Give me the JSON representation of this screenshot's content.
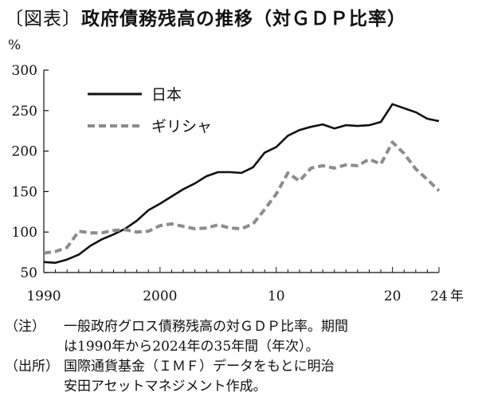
{
  "title": {
    "tag": "〔図表〕",
    "text": "政府債務残高の推移（対ＧＤＰ比率）"
  },
  "notes": {
    "note_label": "（注）",
    "note_line1": "一般政府グロス債務残高の対ＧＤＰ比率。期間",
    "note_line2": "は1990年から2024年の35年間（年次）。",
    "source_label": "（出所）",
    "source_line1": "国際通貨基金（ＩＭＦ）データをもとに明治",
    "source_line2": "安田アセットマネジメント作成。"
  },
  "chart_data": {
    "type": "line",
    "title": "政府債務残高の推移（対ＧＤＰ比率）",
    "ylabel": "%",
    "xlabel": "",
    "y_unit_label": "%",
    "x_unit_label": "年",
    "ylim": [
      50,
      300
    ],
    "xlim": [
      1990,
      2024
    ],
    "y_ticks": [
      50,
      100,
      150,
      200,
      250,
      300
    ],
    "x_ticks": [
      {
        "value": 1990,
        "label": "1990"
      },
      {
        "value": 2000,
        "label": "2000"
      },
      {
        "value": 2010,
        "label": "10"
      },
      {
        "value": 2020,
        "label": "20"
      },
      {
        "value": 2024,
        "label": "24"
      }
    ],
    "grid": false,
    "legend_position": "top-left",
    "x": [
      1990,
      1991,
      1992,
      1993,
      1994,
      1995,
      1996,
      1997,
      1998,
      1999,
      2000,
      2001,
      2002,
      2003,
      2004,
      2005,
      2006,
      2007,
      2008,
      2009,
      2010,
      2011,
      2012,
      2013,
      2014,
      2015,
      2016,
      2017,
      2018,
      2019,
      2020,
      2021,
      2022,
      2023,
      2024
    ],
    "series": [
      {
        "name": "日本",
        "style": "solid",
        "color": "#111111",
        "values": [
          63,
          62,
          66,
          72,
          83,
          91,
          97,
          104,
          114,
          127,
          135,
          144,
          153,
          160,
          169,
          174,
          174,
          173,
          180,
          198,
          205,
          219,
          226,
          230,
          233,
          228,
          232,
          231,
          232,
          236,
          258,
          253,
          248,
          240,
          237
        ]
      },
      {
        "name": "ギリシャ",
        "style": "dashed",
        "color": "#8c8c8c",
        "values": [
          74,
          76,
          81,
          101,
          99,
          99,
          102,
          103,
          100,
          101,
          108,
          110,
          107,
          104,
          105,
          109,
          105,
          104,
          110,
          128,
          147,
          173,
          163,
          179,
          182,
          179,
          183,
          182,
          190,
          184,
          211,
          197,
          178,
          165,
          151
        ]
      }
    ]
  }
}
